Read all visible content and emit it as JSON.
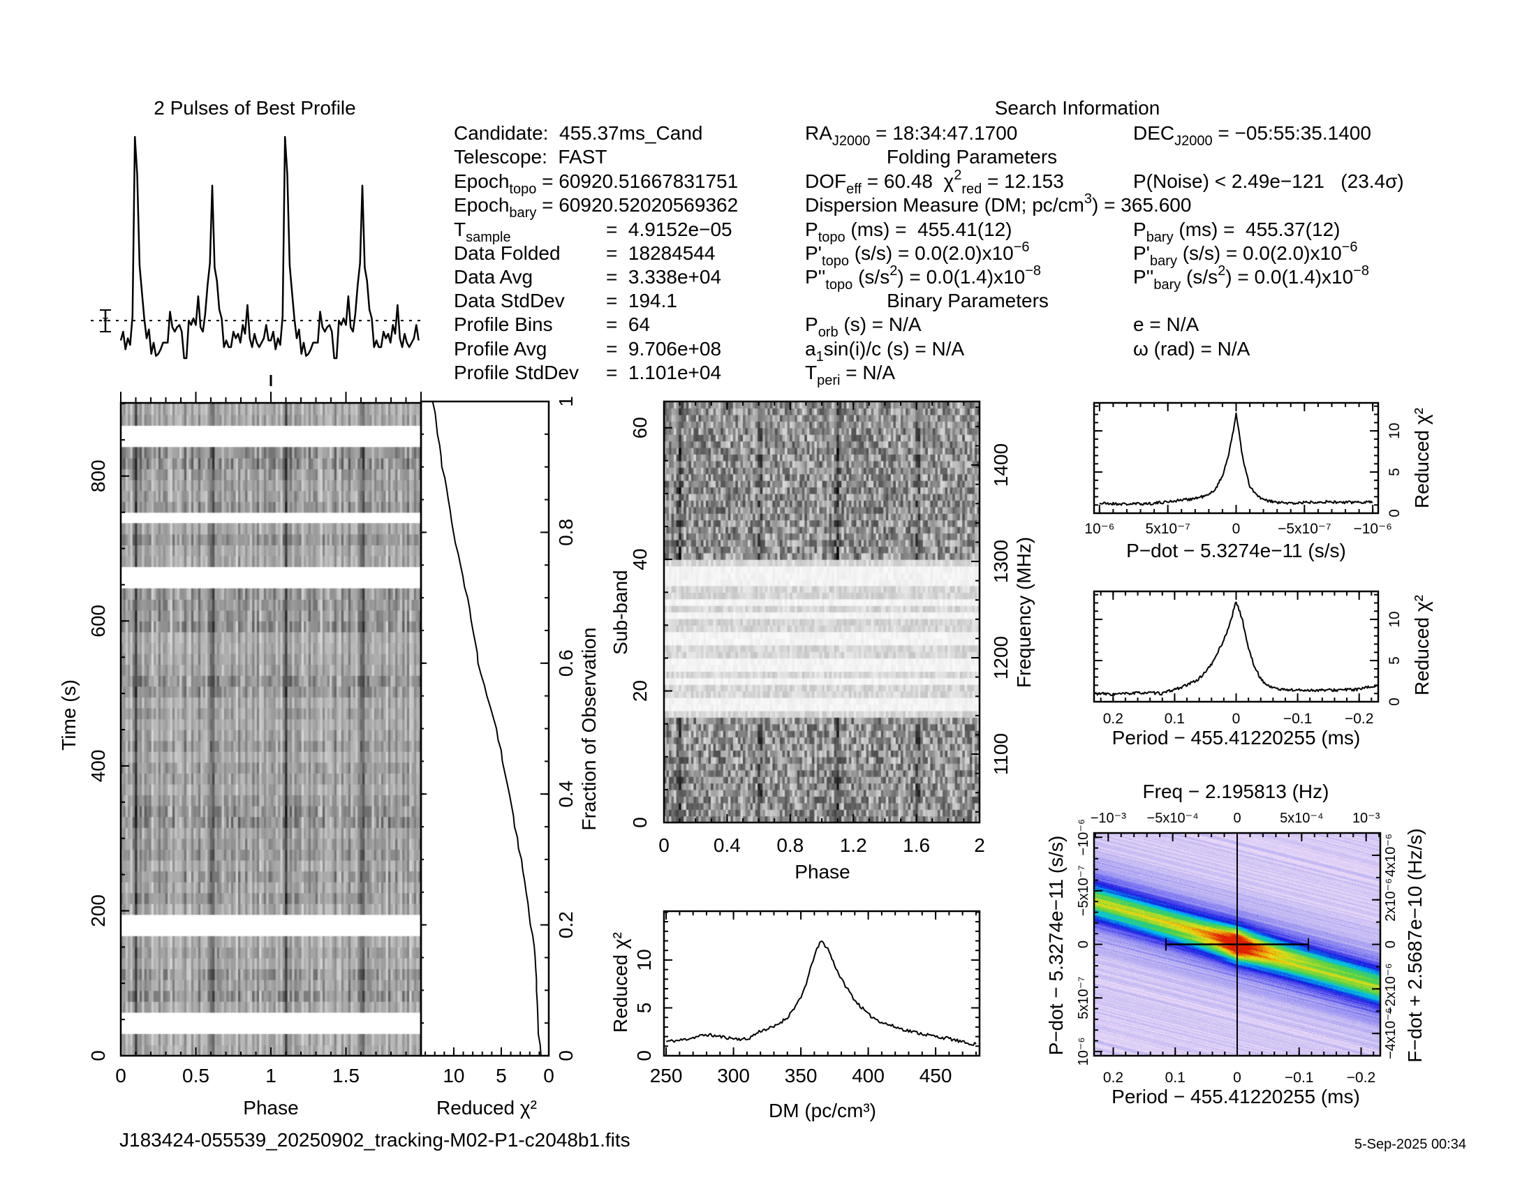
{
  "info": {
    "heading": "Search Information",
    "left": [
      {
        "segs": [
          [
            "Candidate:  455.37ms_Cand",
            "n"
          ]
        ]
      },
      {
        "segs": [
          [
            "Telescope:  FAST",
            "n"
          ]
        ]
      },
      {
        "segs": [
          [
            "Epoch",
            "n"
          ],
          [
            "topo",
            "b"
          ],
          [
            " = 60920.51667831751",
            "n"
          ]
        ]
      },
      {
        "segs": [
          [
            "Epoch",
            "n"
          ],
          [
            "bary",
            "b"
          ],
          [
            " = 60920.52020569362",
            "n"
          ]
        ]
      },
      {
        "segs": [
          [
            "T",
            "n"
          ],
          [
            "sample",
            "b"
          ]
        ],
        "value": "=  4.9152e−05"
      },
      {
        "segs": [
          [
            "Data Folded",
            "n"
          ]
        ],
        "value": "=  18284544"
      },
      {
        "segs": [
          [
            "Data Avg",
            "n"
          ]
        ],
        "value": "=  3.338e+04"
      },
      {
        "segs": [
          [
            "Data StdDev",
            "n"
          ]
        ],
        "value": "=  194.1"
      },
      {
        "segs": [
          [
            "Profile Bins",
            "n"
          ]
        ],
        "value": "=  64"
      },
      {
        "segs": [
          [
            "Profile Avg",
            "n"
          ]
        ],
        "value": "=  9.706e+08"
      },
      {
        "segs": [
          [
            "Profile StdDev",
            "n"
          ]
        ],
        "value": "=  1.101e+04"
      }
    ],
    "mid": [
      {
        "segs": [
          [
            "RA",
            "n"
          ],
          [
            "J2000",
            "b"
          ],
          [
            " = 18:34:47.1700",
            "n"
          ]
        ]
      },
      {
        "heading": true,
        "segs": [
          [
            "Folding Parameters",
            "n"
          ]
        ]
      },
      {
        "segs": [
          [
            "DOF",
            "n"
          ],
          [
            "eff",
            "b"
          ],
          [
            " = 60.48  χ",
            "n"
          ],
          [
            "2",
            "p"
          ],
          [
            "red",
            "b"
          ],
          [
            " = 12.153",
            "n"
          ]
        ]
      },
      {
        "segs": [
          [
            "Dispersion Measure (DM; pc/cm",
            "n"
          ],
          [
            "3",
            "p"
          ],
          [
            ") = 365.600",
            "n"
          ]
        ]
      },
      {
        "segs": [
          [
            "P",
            "n"
          ],
          [
            "topo",
            "b"
          ],
          [
            " (ms) =  455.41(12)",
            "n"
          ]
        ]
      },
      {
        "segs": [
          [
            "P'",
            "n"
          ],
          [
            "topo",
            "b"
          ],
          [
            " (s/s) = 0.0(2.0)x10",
            "n"
          ],
          [
            "−6",
            "p"
          ]
        ]
      },
      {
        "segs": [
          [
            "P''",
            "n"
          ],
          [
            "topo",
            "b"
          ],
          [
            " (s/s",
            "n"
          ],
          [
            "2",
            "p"
          ],
          [
            ") = 0.0(1.4)x10",
            "n"
          ],
          [
            "−8",
            "p"
          ]
        ]
      },
      {
        "heading": true,
        "segs": [
          [
            "Binary Parameters",
            "n"
          ]
        ]
      },
      {
        "segs": [
          [
            "P",
            "n"
          ],
          [
            "orb",
            "b"
          ],
          [
            " (s) = N/A",
            "n"
          ]
        ]
      },
      {
        "segs": [
          [
            "a",
            "n"
          ],
          [
            "1",
            "b"
          ],
          [
            "sin(i)/c (s) = N/A",
            "n"
          ]
        ]
      },
      {
        "segs": [
          [
            "T",
            "n"
          ],
          [
            "peri",
            "b"
          ],
          [
            " = N/A",
            "n"
          ]
        ]
      }
    ],
    "right": [
      {
        "segs": [
          [
            "DEC",
            "n"
          ],
          [
            "J2000",
            "b"
          ],
          [
            " = −05:55:35.1400",
            "n"
          ]
        ]
      },
      null,
      {
        "segs": [
          [
            "P(Noise) < 2.49e−121   (23.4σ)",
            "n"
          ]
        ]
      },
      null,
      {
        "segs": [
          [
            "P",
            "n"
          ],
          [
            "bary",
            "b"
          ],
          [
            " (ms) =  455.37(12)",
            "n"
          ]
        ]
      },
      {
        "segs": [
          [
            "P'",
            "n"
          ],
          [
            "bary",
            "b"
          ],
          [
            " (s/s) = 0.0(2.0)x10",
            "n"
          ],
          [
            "−6",
            "p"
          ]
        ]
      },
      {
        "segs": [
          [
            "P''",
            "n"
          ],
          [
            "bary",
            "b"
          ],
          [
            " (s/s",
            "n"
          ],
          [
            "2",
            "p"
          ],
          [
            ") = 0.0(1.4)x10",
            "n"
          ],
          [
            "−8",
            "p"
          ]
        ]
      },
      null,
      {
        "segs": [
          [
            "e = N/A",
            "n"
          ]
        ]
      },
      {
        "segs": [
          [
            "ω (rad) = N/A",
            "n"
          ]
        ]
      },
      null
    ]
  },
  "footer": {
    "filename": "J183424-055539_20250902_tracking-M02-P1-c2048b1.fits",
    "timestamp": "5-Sep-2025 00:34"
  },
  "chart_data": [
    {
      "id": "profile",
      "type": "line",
      "title": "2 Pulses of Best Profile",
      "xlim": [
        0,
        2
      ],
      "pulses_shown": 2,
      "bins": 64,
      "values": [
        0.08,
        0.12,
        0.04,
        0.09,
        0.06,
        0.19,
        1.0,
        0.83,
        0.42,
        0.3,
        0.18,
        0.09,
        0.13,
        0.02,
        0.07,
        0.01,
        0.02,
        0.04,
        0.07,
        0.07,
        0.07,
        0.21,
        0.14,
        0.12,
        0.14,
        0.15,
        0.12,
        0.0,
        0.0,
        0.17,
        0.15,
        0.18,
        0.15,
        0.28,
        0.14,
        0.12,
        0.2,
        0.33,
        0.43,
        0.78,
        0.41,
        0.35,
        0.22,
        0.18,
        0.05,
        0.08,
        0.05,
        0.05,
        0.12,
        0.09,
        0.11,
        0.07,
        0.15,
        0.11,
        0.24,
        0.09,
        0.05,
        0.11,
        0.07,
        0.05,
        0.07,
        0.09,
        0.15,
        0.08
      ],
      "average_level": 0.17,
      "avg_line_style": "dotted",
      "phase_marker": 1.0
    },
    {
      "id": "time-phase",
      "type": "heatmap",
      "colormap": "grayscale-inverted",
      "xlabel": "Phase",
      "ylabel": "Time (s)",
      "xlim": [
        0,
        2
      ],
      "ylim": [
        0,
        901
      ],
      "xticks": [
        0,
        0.5,
        1,
        1.5
      ],
      "xtick_labels": [
        "0",
        "0.5",
        "1",
        "1.5"
      ],
      "yticks": [
        0,
        200,
        400,
        600,
        800
      ],
      "ytick_labels": [
        "0",
        "200",
        "400",
        "600",
        "800"
      ],
      "subint_seconds": 15,
      "pulse_phases": [
        0.1,
        0.61
      ],
      "gaps_s": [
        [
          31,
          58
        ],
        [
          170,
          200
        ],
        [
          648,
          675
        ],
        [
          733,
          757
        ],
        [
          843,
          872
        ]
      ]
    },
    {
      "id": "chi2-vs-time",
      "type": "line",
      "xlabel": "Reduced χ²",
      "ylabel_right": "Fraction of Observation",
      "xlim": [
        13.45,
        0
      ],
      "ylim": [
        0,
        1
      ],
      "xticks": [
        10,
        5,
        0
      ],
      "xtick_labels": [
        "10",
        "5",
        "0"
      ],
      "yticks": [
        0,
        0.2,
        0.4,
        0.6,
        0.8,
        1
      ],
      "ytick_labels": [
        "0",
        "0.2",
        "0.4",
        "0.6",
        "0.8",
        "1"
      ],
      "fraction": [
        0,
        0.05,
        0.1,
        0.15,
        0.2,
        0.3,
        0.4,
        0.5,
        0.6,
        0.7,
        0.8,
        0.9,
        1.0
      ],
      "chi2": [
        0.9,
        1.1,
        1.3,
        1.4,
        1.9,
        2.9,
        4.2,
        5.5,
        7.4,
        8.6,
        10.0,
        11.2,
        12.2
      ]
    },
    {
      "id": "subband-phase",
      "type": "heatmap",
      "colormap": "grayscale-inverted",
      "xlabel": "Phase",
      "ylabel": "Sub-band",
      "ylabel_right": "Frequency (MHz)",
      "xlim": [
        0,
        2
      ],
      "ylim": [
        0,
        64
      ],
      "freq_lim_mhz": [
        1029,
        1466
      ],
      "xticks": [
        0,
        0.4,
        0.8,
        1.2,
        1.6,
        2
      ],
      "xtick_labels": [
        "0",
        "0.4",
        "0.8",
        "1.2",
        "1.6",
        "2"
      ],
      "yticks": [
        0,
        20,
        40,
        60
      ],
      "ytick_labels": [
        "0",
        "20",
        "40",
        "60"
      ],
      "rticks": [
        1100,
        1200,
        1300,
        1400
      ],
      "rtick_labels": [
        "1100",
        "1200",
        "1300",
        "1400"
      ],
      "pulse_phases": [
        0.1,
        0.61
      ],
      "rfi_subbands": [
        16,
        39
      ],
      "flagged_subbands": [
        17,
        18,
        21,
        23,
        24,
        27,
        28,
        31,
        33,
        36,
        37,
        38
      ]
    },
    {
      "id": "dm-chi2",
      "type": "line",
      "xlabel": "DM (pc/cm³)",
      "ylabel": "Reduced χ²",
      "xlim": [
        248.4,
        482.6
      ],
      "ylim": [
        0,
        15.1
      ],
      "xticks": [
        250,
        300,
        350,
        400,
        450
      ],
      "xtick_labels": [
        "250",
        "300",
        "350",
        "400",
        "450"
      ],
      "yticks": [
        0,
        5,
        10
      ],
      "ytick_labels": [
        "0",
        "5",
        "10"
      ],
      "x": [
        250,
        260,
        270,
        280,
        290,
        300,
        310,
        320,
        330,
        340,
        350,
        355,
        360,
        365,
        370,
        375,
        380,
        390,
        400,
        410,
        420,
        430,
        440,
        450,
        460,
        470,
        480
      ],
      "y": [
        1.5,
        1.6,
        1.9,
        2.2,
        2.0,
        1.8,
        1.7,
        2.6,
        3.0,
        4.0,
        6.0,
        8.0,
        10.5,
        12.0,
        11.2,
        9.5,
        8.0,
        5.8,
        4.3,
        3.5,
        3.0,
        2.6,
        2.3,
        2.0,
        1.8,
        1.4,
        1.2
      ]
    },
    {
      "id": "pdot-chi2",
      "type": "line",
      "xlabel": "P−dot − 5.3274e−11 (s/s)",
      "ylabel_right": "Reduced χ²",
      "xlim": [
        1.04e-06,
        -1.04e-06
      ],
      "ylim": [
        0,
        13.4
      ],
      "xticks": [
        1e-06,
        5e-07,
        0,
        -5e-07,
        -1e-06
      ],
      "xtick_labels": [
        "10⁻⁶",
        "5x10⁻⁷",
        "0",
        "−5x10⁻⁷",
        "−10⁻⁶"
      ],
      "yticks": [
        0,
        5,
        10
      ],
      "ytick_labels": [
        "0",
        "5",
        "10"
      ],
      "x": [
        1e-06,
        8e-07,
        6e-07,
        4e-07,
        3e-07,
        2e-07,
        1.5e-07,
        1e-07,
        5e-08,
        2e-08,
        0,
        -2e-08,
        -5e-08,
        -1e-07,
        -1.5e-07,
        -2e-07,
        -3e-07,
        -4e-07,
        -6e-07,
        -8e-07,
        -1e-06
      ],
      "y": [
        1.2,
        1.1,
        1.2,
        1.6,
        1.8,
        2.2,
        3.0,
        4.5,
        7.5,
        10.0,
        12.2,
        10.0,
        6.5,
        3.2,
        2.2,
        1.6,
        1.3,
        1.2,
        1.4,
        1.3,
        1.4
      ]
    },
    {
      "id": "period-chi2",
      "type": "line",
      "xlabel": "Period − 455.41220255 (ms)",
      "ylabel_right": "Reduced χ²",
      "xlim": [
        0.231,
        -0.231
      ],
      "ylim": [
        0,
        13.4
      ],
      "xticks": [
        0.2,
        0.1,
        0,
        -0.1,
        -0.2
      ],
      "xtick_labels": [
        "0.2",
        "0.1",
        "0",
        "−0.1",
        "−0.2"
      ],
      "yticks": [
        0,
        5,
        10
      ],
      "ytick_labels": [
        "0",
        "5",
        "10"
      ],
      "x": [
        0.23,
        0.2,
        0.15,
        0.12,
        0.1,
        0.08,
        0.06,
        0.04,
        0.02,
        0.01,
        0,
        -0.01,
        -0.02,
        -0.03,
        -0.04,
        -0.05,
        -0.07,
        -0.1,
        -0.15,
        -0.2,
        -0.23
      ],
      "y": [
        1.0,
        0.9,
        1.1,
        1.0,
        1.5,
        2.0,
        2.8,
        4.5,
        7.5,
        9.5,
        12.2,
        10.0,
        6.5,
        4.2,
        2.8,
        2.0,
        1.5,
        1.4,
        1.4,
        1.5,
        2.0
      ]
    },
    {
      "id": "period-pdot-plane",
      "type": "heatmap",
      "title": "Freq − 2.195813 (Hz)",
      "xlabel": "Period − 455.41220255 (ms)",
      "ylabel": "P−dot − 5.3274e−11 (s/s)",
      "ylabel_right": "F−dot + 2.5687e−10 (Hz/s)",
      "xlim": [
        0.231,
        -0.231
      ],
      "ylim": [
        1.04e-06,
        -1.04e-06
      ],
      "top_xlim": [
        -0.00111,
        0.00111
      ],
      "right_ylim": [
        -5e-06,
        5e-06
      ],
      "xticks": [
        0.2,
        0.1,
        0,
        -0.1,
        -0.2
      ],
      "xtick_labels": [
        "0.2",
        "0.1",
        "0",
        "−0.1",
        "−0.2"
      ],
      "top_xticks": [
        -0.001,
        -0.0005,
        0,
        0.0005,
        0.001
      ],
      "top_xtick_labels": [
        "−10⁻³",
        "−5x10⁻⁴",
        "0",
        "5x10⁻⁴",
        "10⁻³"
      ],
      "yticks": [
        -1e-06,
        -5e-07,
        0,
        5e-07,
        1e-06
      ],
      "ytick_labels": [
        "−10⁻⁶",
        "−5x10⁻⁷",
        "0",
        "5x10⁻⁷",
        "10⁻⁶"
      ],
      "right_yticks": [
        4e-06,
        2e-06,
        0,
        -2e-06,
        -4e-06
      ],
      "right_ytick_labels": [
        "4x10⁻⁶",
        "2x10⁻⁶",
        "0",
        "−2x10⁻⁶",
        "−4x10⁻⁶"
      ],
      "best": [
        0,
        0
      ],
      "period_error_ms": 0.115,
      "colormap": [
        "#f8e6f8",
        "#b4acf2",
        "#6a66f0",
        "#1414e0",
        "#00c4f0",
        "#40d050",
        "#f0e010",
        "#e02000"
      ]
    }
  ]
}
